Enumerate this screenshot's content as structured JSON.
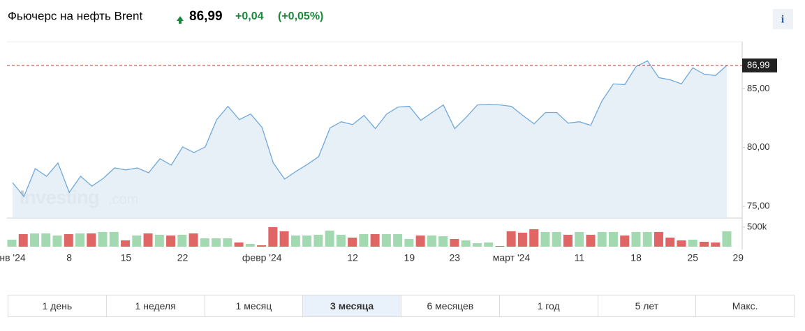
{
  "header": {
    "title": "Фьючерс на нефть Brent",
    "change": "+0,04",
    "change_pct": "(+0,05%)",
    "info": "i"
  },
  "tabs": [
    "1 день",
    "1 неделя",
    "1 месяц",
    "3 месяца",
    "6 месяцев",
    "1 год",
    "5 лет",
    "Макс."
  ],
  "active_tab": 3,
  "chart_data": {
    "type": "area",
    "watermark": [
      "Investing",
      ".com"
    ],
    "last": {
      "value": 86.99,
      "label": "86,99"
    },
    "line_color": "#6fa8dc",
    "fill_color": "#e4edf6",
    "last_line_color": "#c0392b",
    "values": [
      77.02,
      75.83,
      78.21,
      77.56,
      78.69,
      76.19,
      77.56,
      76.73,
      77.38,
      78.27,
      78.1,
      78.27,
      77.86,
      79.05,
      78.51,
      80.06,
      79.58,
      80.06,
      82.38,
      83.51,
      82.38,
      82.86,
      81.73,
      78.69,
      77.32,
      77.98,
      78.57,
      79.23,
      81.67,
      82.2,
      81.96,
      82.74,
      81.61,
      82.86,
      83.45,
      83.51,
      82.32,
      82.98,
      83.63,
      81.61,
      82.56,
      83.63,
      83.69,
      83.63,
      83.51,
      82.74,
      82.02,
      82.98,
      82.98,
      82.08,
      82.2,
      81.9,
      83.99,
      85.42,
      85.36,
      86.9,
      87.38,
      85.95,
      85.77,
      85.42,
      86.79,
      86.25,
      86.13,
      86.99
    ],
    "xlim": [
      0,
      63
    ],
    "xticks": [
      {
        "value": 0,
        "label": "нв '24"
      },
      {
        "value": 5,
        "label": "8"
      },
      {
        "value": 10,
        "label": "15"
      },
      {
        "value": 15,
        "label": "22"
      },
      {
        "value": 22,
        "label": "февр '24"
      },
      {
        "value": 30,
        "label": "12"
      },
      {
        "value": 35,
        "label": "19"
      },
      {
        "value": 39,
        "label": "23"
      },
      {
        "value": 44,
        "label": "март '24"
      },
      {
        "value": 50,
        "label": "11"
      },
      {
        "value": 55,
        "label": "18"
      },
      {
        "value": 60,
        "label": "25"
      },
      {
        "value": 64,
        "label": "29"
      }
    ],
    "ylim": [
      74,
      89
    ],
    "yticks": [
      {
        "value": 75,
        "label": "75,00"
      },
      {
        "value": 80,
        "label": "80,00"
      },
      {
        "value": 85,
        "label": "85,00"
      }
    ],
    "volume": {
      "ylim": [
        0,
        640000
      ],
      "yticks": [
        {
          "value": 500000,
          "label": "500k"
        }
      ],
      "up_color": "#a3d9b1",
      "down_color": "#e06666",
      "values": [
        179000,
        321000,
        339000,
        339000,
        286000,
        321000,
        339000,
        339000,
        375000,
        375000,
        161000,
        286000,
        339000,
        304000,
        286000,
        304000,
        339000,
        214000,
        214000,
        214000,
        107000,
        71000,
        36000,
        500000,
        393000,
        286000,
        286000,
        304000,
        411000,
        304000,
        232000,
        321000,
        321000,
        321000,
        321000,
        196000,
        286000,
        286000,
        268000,
        196000,
        161000,
        89000,
        107000,
        18000,
        393000,
        357000,
        446000,
        375000,
        375000,
        304000,
        375000,
        304000,
        375000,
        375000,
        286000,
        375000,
        375000,
        375000,
        232000,
        161000,
        179000,
        125000,
        107000,
        393000
      ],
      "up": [
        true,
        false,
        true,
        true,
        true,
        false,
        true,
        false,
        true,
        true,
        false,
        true,
        false,
        true,
        false,
        true,
        false,
        true,
        true,
        true,
        false,
        true,
        false,
        false,
        false,
        true,
        true,
        true,
        true,
        true,
        false,
        true,
        false,
        true,
        true,
        true,
        false,
        true,
        true,
        false,
        true,
        true,
        true,
        false,
        false,
        false,
        false,
        true,
        true,
        false,
        true,
        false,
        true,
        true,
        false,
        true,
        true,
        false,
        false,
        false,
        true,
        false,
        false,
        true
      ]
    }
  }
}
